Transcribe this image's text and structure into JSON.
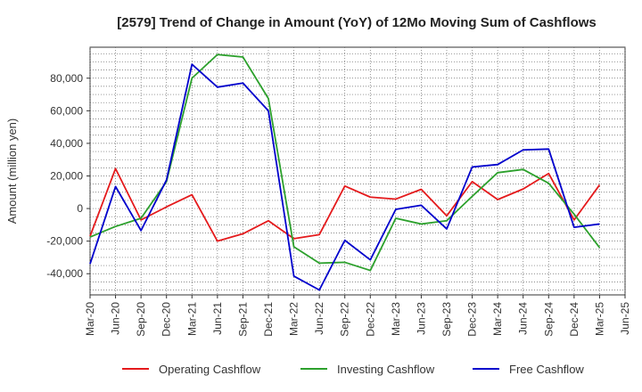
{
  "chart_data": {
    "type": "line",
    "title": "[2579]  Trend of Change in Amount (YoY) of 12Mo Moving Sum of Cashflows",
    "xlabel": "",
    "ylabel": "Amount (million yen)",
    "ylim": [
      -53000,
      99000
    ],
    "y_ticks": [
      -40000,
      -20000,
      0,
      20000,
      40000,
      60000,
      80000
    ],
    "y_tick_labels": [
      "-40,000",
      "-20,000",
      "0",
      "20,000",
      "40,000",
      "60,000",
      "80,000"
    ],
    "grid": true,
    "categories": [
      "Mar-20",
      "Jun-20",
      "Sep-20",
      "Dec-20",
      "Mar-21",
      "Jun-21",
      "Sep-21",
      "Dec-21",
      "Mar-22",
      "Jun-22",
      "Sep-22",
      "Dec-22",
      "Mar-23",
      "Jun-23",
      "Sep-23",
      "Dec-23",
      "Mar-24",
      "Jun-24",
      "Sep-24",
      "Dec-24",
      "Mar-25",
      "Jun-25"
    ],
    "series": [
      {
        "name": "Operating Cashflow",
        "color": "#e41a1c",
        "values": [
          -17000,
          24500,
          -7000,
          1000,
          8500,
          -20000,
          -15500,
          -7500,
          -18500,
          -16000,
          13800,
          7000,
          5800,
          11800,
          -4500,
          16500,
          5500,
          12000,
          21500,
          -7000,
          14500,
          null
        ]
      },
      {
        "name": "Investing Cashflow",
        "color": "#2ca02c",
        "values": [
          -17500,
          -11000,
          -6000,
          16500,
          80000,
          94500,
          93000,
          67500,
          -23500,
          -33500,
          -33000,
          -38000,
          -6000,
          -9500,
          -7500,
          7500,
          22000,
          24000,
          15500,
          -3500,
          -24000,
          null
        ]
      },
      {
        "name": "Free Cashflow",
        "color": "#0000cc",
        "values": [
          -34000,
          13500,
          -13500,
          17500,
          88500,
          74500,
          77000,
          60000,
          -41500,
          -50000,
          -19500,
          -31500,
          -500,
          2000,
          -12500,
          25500,
          27000,
          36000,
          36500,
          -11500,
          -9500,
          null
        ]
      }
    ],
    "legend_position": "bottom"
  }
}
